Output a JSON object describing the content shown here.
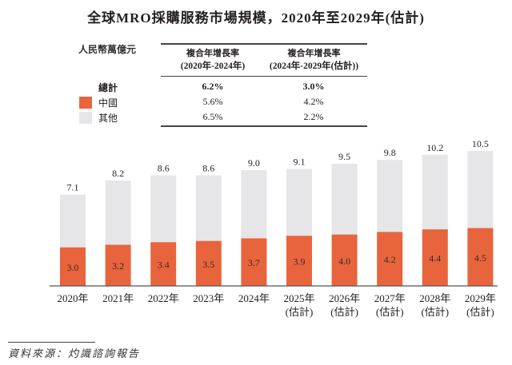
{
  "title": "全球MRO採購服務市場規模，2020年至2029年(估計)",
  "unit_label": "人民幣萬億元",
  "cagr_table": {
    "headers": [
      {
        "line1": "複合年增長率",
        "line2": "(2020年-2024年)"
      },
      {
        "line1": "複合年增長率",
        "line2": "(2024年-2029年(估計))"
      }
    ],
    "rows": [
      {
        "label": "總計",
        "values": [
          "6.2%",
          "3.0%"
        ],
        "bold": true,
        "swatch": null
      },
      {
        "label": "中國",
        "values": [
          "5.6%",
          "4.2%"
        ],
        "bold": false,
        "swatch": "#e8643c"
      },
      {
        "label": "其他",
        "values": [
          "6.5%",
          "2.2%"
        ],
        "bold": false,
        "swatch": "#e6e6e8"
      }
    ]
  },
  "colors": {
    "china": "#e8643c",
    "others": "#e6e6e8",
    "axis": "#555555",
    "text": "#231f20"
  },
  "chart_data": {
    "type": "bar",
    "stacked": true,
    "title": "全球MRO採購服務市場規模，2020年至2029年(估計)",
    "xlabel": "",
    "ylabel": "人民幣萬億元",
    "categories": [
      "2020年",
      "2021年",
      "2022年",
      "2023年",
      "2024年",
      "2025年",
      "2026年",
      "2027年",
      "2028年",
      "2029年"
    ],
    "category_sublabels": [
      "",
      "",
      "",
      "",
      "",
      "(估計)",
      "(估計)",
      "(估計)",
      "(估計)",
      "(估計)"
    ],
    "series": [
      {
        "name": "中國",
        "values": [
          3.0,
          3.2,
          3.4,
          3.5,
          3.7,
          3.9,
          4.0,
          4.2,
          4.4,
          4.5
        ]
      },
      {
        "name": "其他",
        "values": [
          4.1,
          5.0,
          5.2,
          5.1,
          5.3,
          5.2,
          5.5,
          5.6,
          5.8,
          6.0
        ]
      }
    ],
    "totals": [
      7.1,
      8.2,
      8.6,
      8.6,
      9.0,
      9.1,
      9.5,
      9.8,
      10.2,
      10.5
    ],
    "ylim": [
      0,
      10.5
    ],
    "grid": false,
    "legend": "top-left"
  },
  "source": "資料來源：灼識諮詢報告"
}
